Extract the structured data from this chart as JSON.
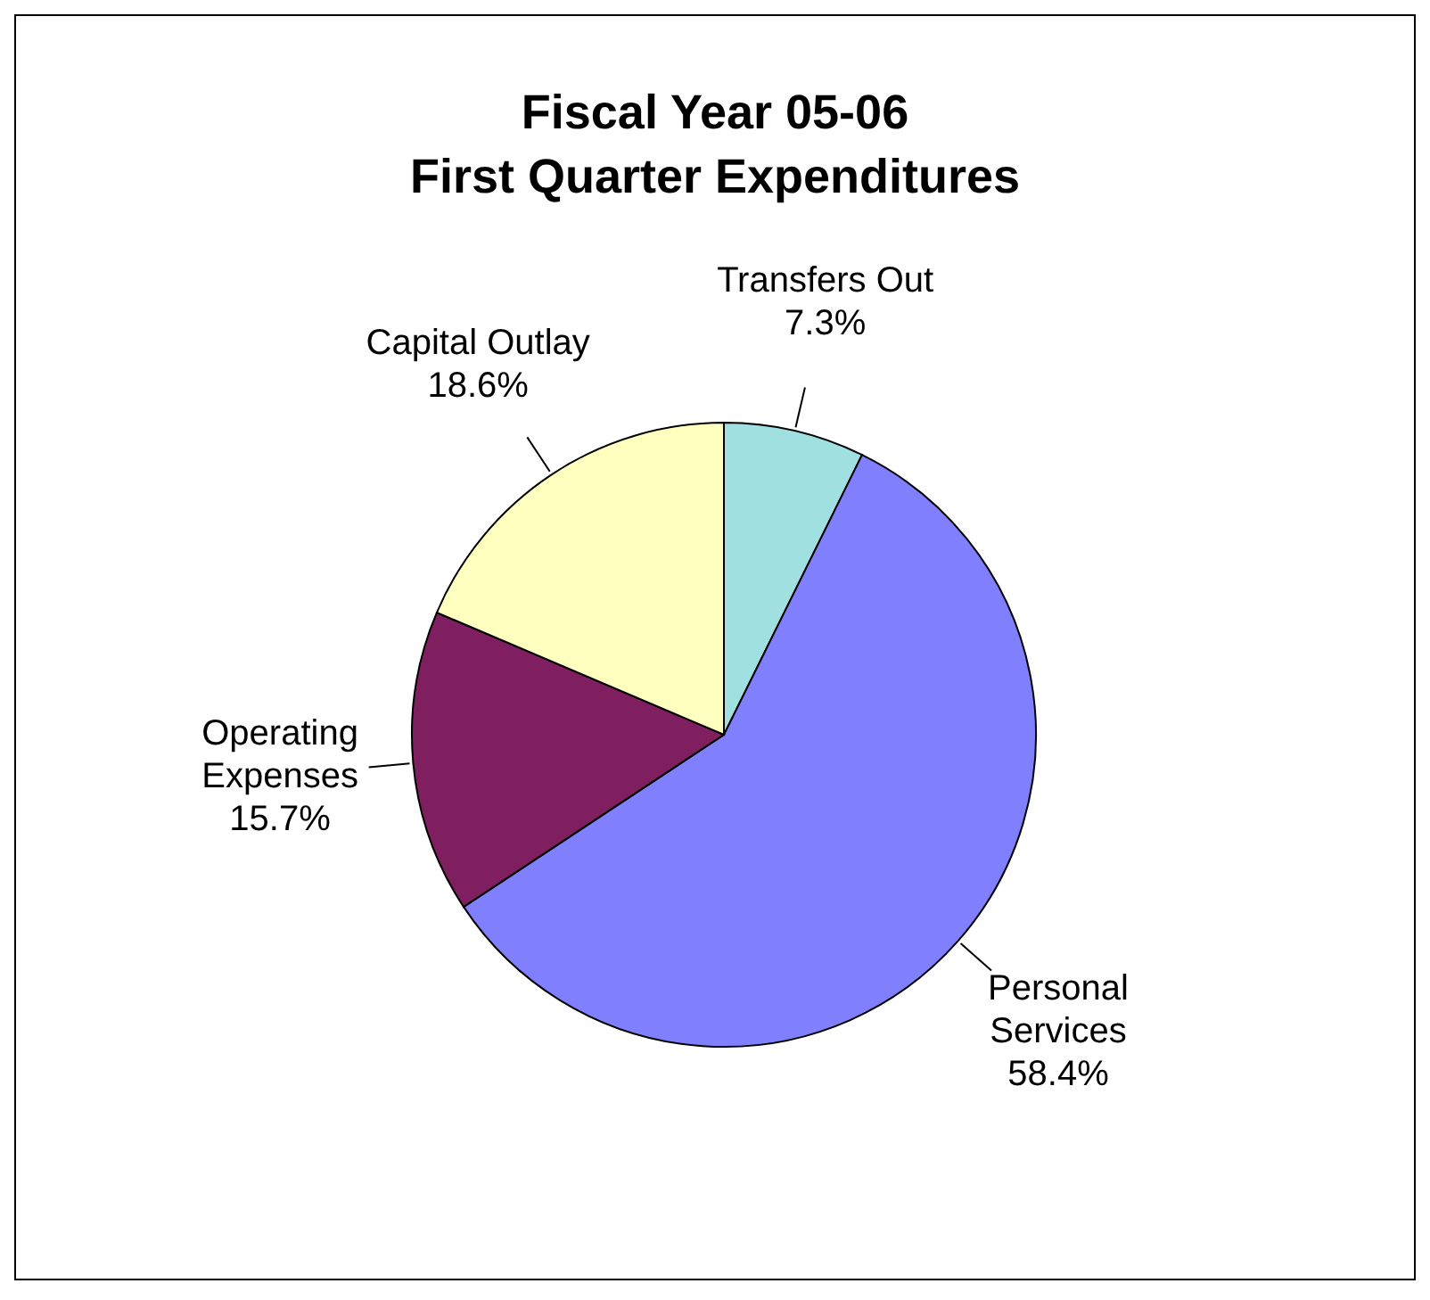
{
  "chart_data": {
    "type": "pie",
    "title": "Fiscal Year 05-06\nFirst Quarter Expenditures",
    "categories": [
      "Transfers Out",
      "Personal Services",
      "Operating Expenses",
      "Capital Outlay"
    ],
    "values": [
      7.3,
      58.4,
      15.7,
      18.6
    ],
    "value_labels": [
      "7.3%",
      "58.4%",
      "15.7%",
      "18.6%"
    ],
    "colors": [
      "#a0e0e0",
      "#8080ff",
      "#7f1f5f",
      "#ffffc0"
    ]
  }
}
